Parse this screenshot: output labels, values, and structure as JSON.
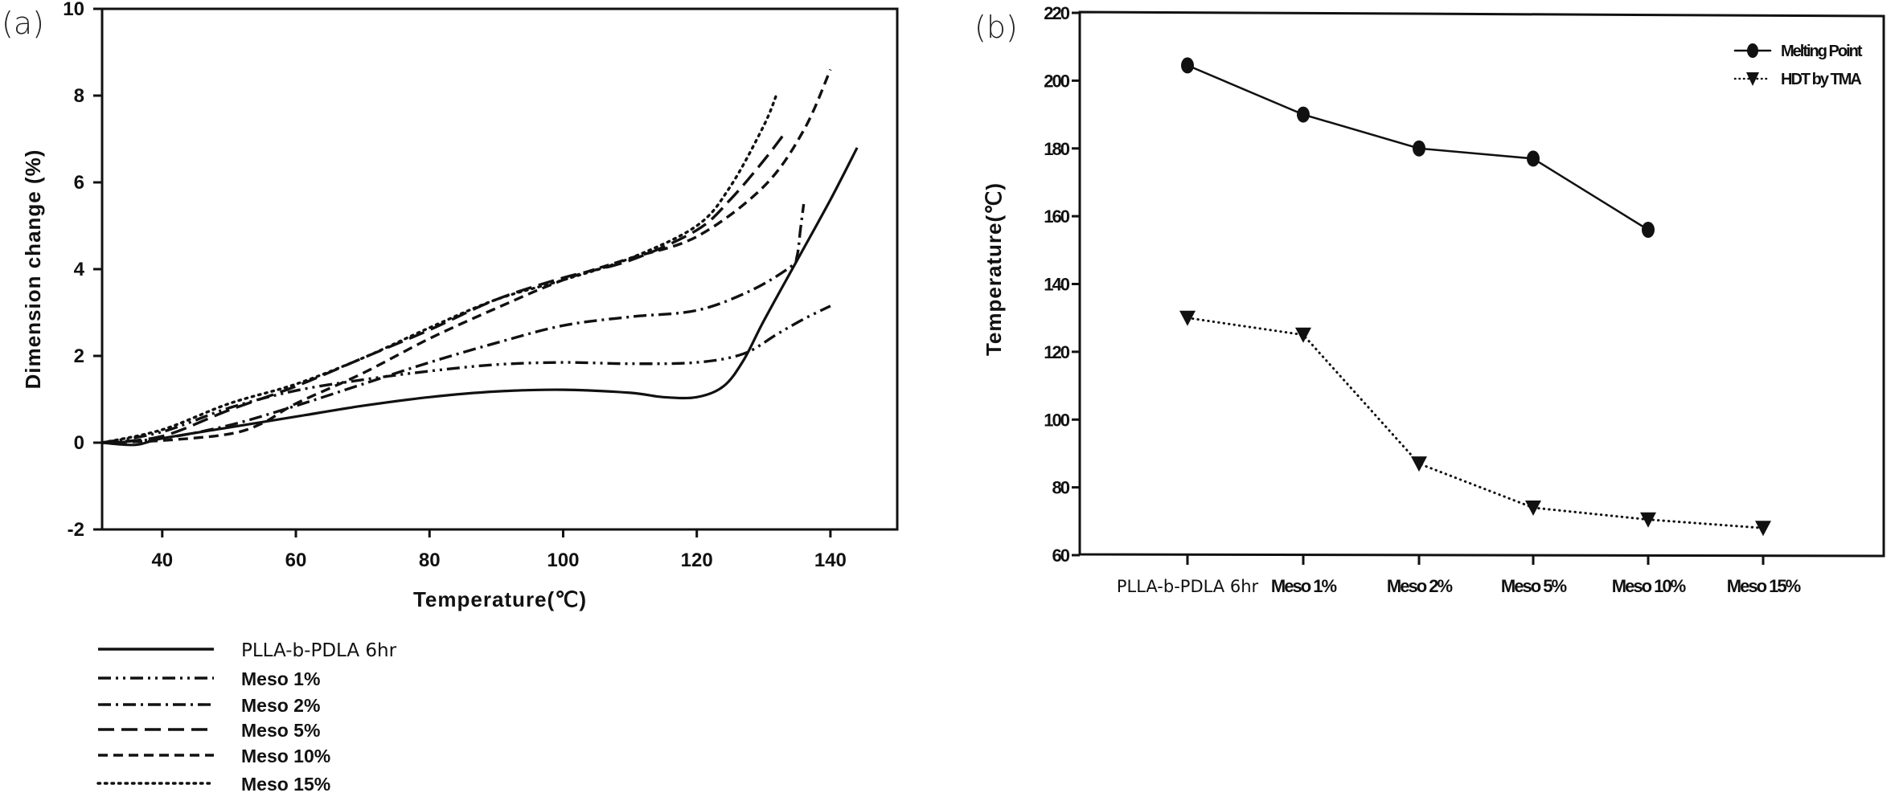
{
  "chart_data": [
    {
      "panel": "(a)",
      "type": "line",
      "title": "",
      "xlabel": "Temperature(℃)",
      "ylabel": "Dimension change (%)",
      "xlim": [
        31,
        150
      ],
      "ylim": [
        -2,
        10
      ],
      "xticks": [
        40,
        60,
        80,
        100,
        120,
        140
      ],
      "yticks": [
        -2,
        0,
        2,
        4,
        6,
        8,
        10
      ],
      "grid": false,
      "legend_position": "below",
      "series": [
        {
          "name": "PLLA-b-PDLA 6hr",
          "style": "solid",
          "points": [
            [
              31,
              0
            ],
            [
              36,
              -0.05
            ],
            [
              40,
              0.1
            ],
            [
              50,
              0.35
            ],
            [
              60,
              0.6
            ],
            [
              70,
              0.85
            ],
            [
              80,
              1.05
            ],
            [
              90,
              1.18
            ],
            [
              100,
              1.22
            ],
            [
              110,
              1.15
            ],
            [
              115,
              1.05
            ],
            [
              120,
              1.05
            ],
            [
              124,
              1.3
            ],
            [
              127,
              1.9
            ],
            [
              130,
              2.8
            ],
            [
              135,
              4.2
            ],
            [
              140,
              5.6
            ],
            [
              144,
              6.8
            ]
          ]
        },
        {
          "name": "Meso 1%",
          "style": "dash-dot-dot",
          "points": [
            [
              31,
              0
            ],
            [
              40,
              0.25
            ],
            [
              50,
              0.8
            ],
            [
              60,
              1.2
            ],
            [
              70,
              1.45
            ],
            [
              80,
              1.65
            ],
            [
              90,
              1.8
            ],
            [
              100,
              1.85
            ],
            [
              110,
              1.82
            ],
            [
              120,
              1.85
            ],
            [
              127,
              2.05
            ],
            [
              132,
              2.5
            ],
            [
              136,
              2.85
            ],
            [
              140,
              3.15
            ]
          ]
        },
        {
          "name": "Meso 2%",
          "style": "dash-dot",
          "points": [
            [
              31,
              0
            ],
            [
              40,
              0.1
            ],
            [
              50,
              0.4
            ],
            [
              60,
              0.85
            ],
            [
              70,
              1.35
            ],
            [
              80,
              1.85
            ],
            [
              90,
              2.3
            ],
            [
              100,
              2.7
            ],
            [
              110,
              2.9
            ],
            [
              120,
              3.05
            ],
            [
              128,
              3.5
            ],
            [
              134,
              4.05
            ],
            [
              135,
              4.3
            ],
            [
              135.5,
              4.9
            ],
            [
              136,
              5.5
            ]
          ]
        },
        {
          "name": "Meso 5%",
          "style": "long-dash",
          "points": [
            [
              31,
              0
            ],
            [
              40,
              0.15
            ],
            [
              50,
              0.75
            ],
            [
              60,
              1.3
            ],
            [
              70,
              1.95
            ],
            [
              80,
              2.6
            ],
            [
              90,
              3.3
            ],
            [
              100,
              3.8
            ],
            [
              110,
              4.2
            ],
            [
              120,
              4.9
            ],
            [
              125,
              5.6
            ],
            [
              130,
              6.5
            ],
            [
              133,
              7.1
            ]
          ]
        },
        {
          "name": "Meso 10%",
          "style": "dash",
          "points": [
            [
              31,
              0
            ],
            [
              40,
              0.05
            ],
            [
              50,
              0.2
            ],
            [
              55,
              0.45
            ],
            [
              60,
              0.9
            ],
            [
              70,
              1.6
            ],
            [
              80,
              2.4
            ],
            [
              90,
              3.1
            ],
            [
              100,
              3.75
            ],
            [
              110,
              4.25
            ],
            [
              120,
              4.75
            ],
            [
              130,
              5.9
            ],
            [
              136,
              7.2
            ],
            [
              140,
              8.6
            ]
          ]
        },
        {
          "name": "Meso 15%",
          "style": "dot",
          "points": [
            [
              31,
              0
            ],
            [
              40,
              0.3
            ],
            [
              50,
              0.9
            ],
            [
              60,
              1.35
            ],
            [
              70,
              1.95
            ],
            [
              80,
              2.65
            ],
            [
              90,
              3.3
            ],
            [
              100,
              3.75
            ],
            [
              110,
              4.25
            ],
            [
              120,
              5.0
            ],
            [
              125,
              5.9
            ],
            [
              130,
              7.3
            ],
            [
              132,
              8.05
            ]
          ]
        }
      ]
    },
    {
      "panel": "(b)",
      "type": "line",
      "title": "",
      "xlabel": "",
      "ylabel": "Temperature(℃)",
      "categories": [
        "PLLA-b-PDLA 6hr",
        "Meso 1%",
        "Meso 2%",
        "Meso 5%",
        "Meso 10%",
        "Meso 15%"
      ],
      "ylim": [
        60,
        220
      ],
      "yticks": [
        60,
        80,
        100,
        120,
        140,
        160,
        180,
        200,
        220
      ],
      "grid": false,
      "legend_position": "top-right",
      "series": [
        {
          "name": "Melting Point",
          "marker": "circle",
          "style": "solid",
          "values": [
            204.5,
            190,
            180,
            177,
            156,
            null
          ]
        },
        {
          "name": "HDT by TMA",
          "marker": "triangle-down",
          "style": "dot",
          "values": [
            130,
            125,
            87,
            74,
            70.5,
            68
          ]
        }
      ]
    }
  ],
  "labels": {
    "panel_a": "(a)",
    "panel_b": "(b)"
  }
}
